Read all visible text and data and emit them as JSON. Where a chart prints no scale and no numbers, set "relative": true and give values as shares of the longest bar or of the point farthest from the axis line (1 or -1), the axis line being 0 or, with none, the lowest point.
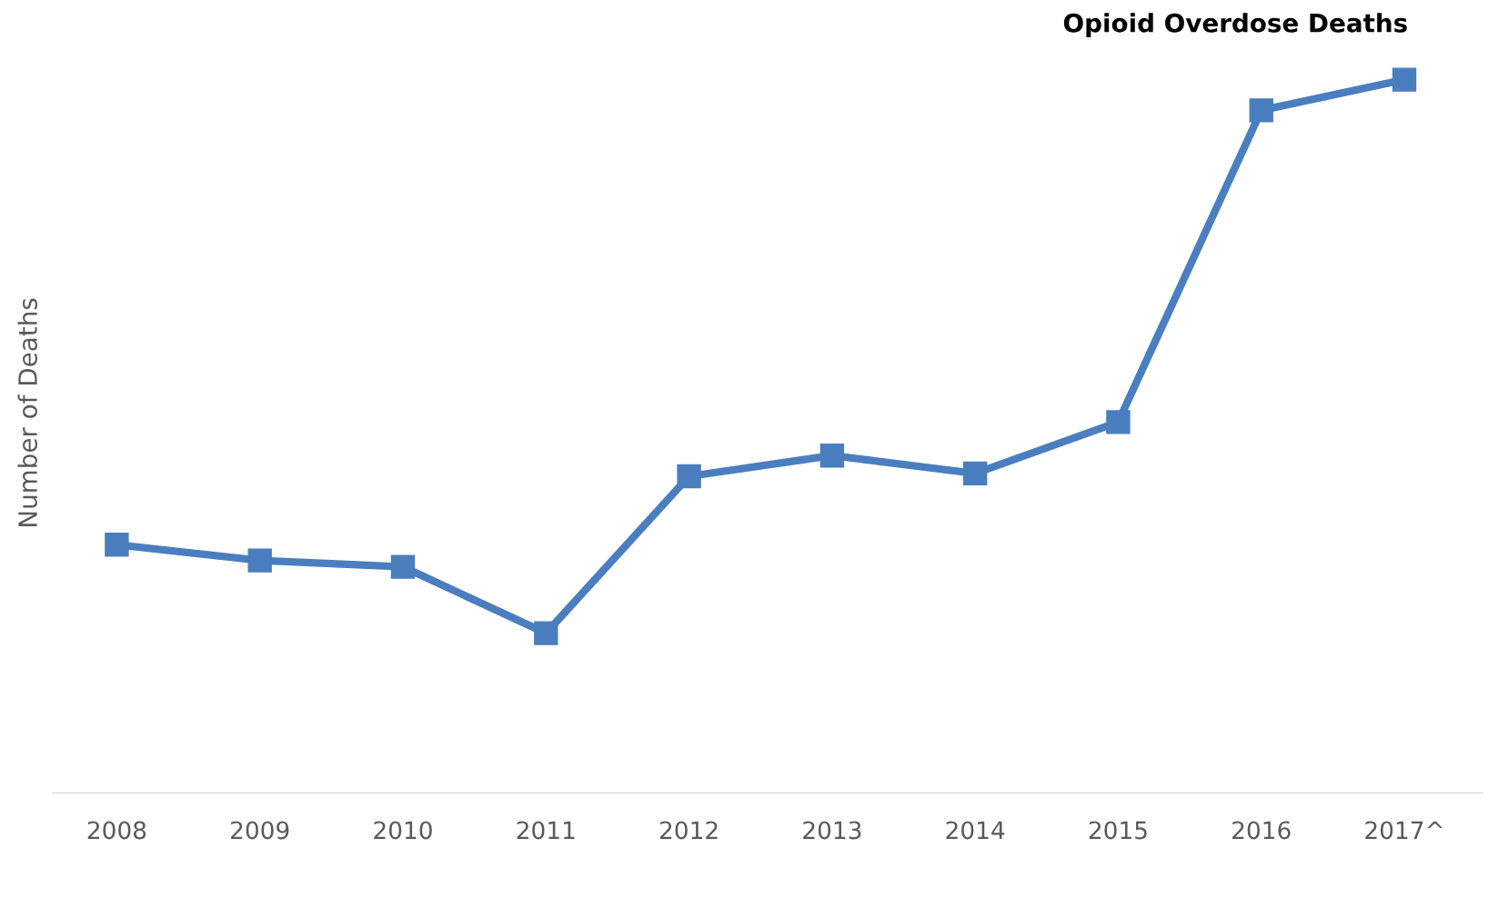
{
  "chart_data": {
    "type": "line",
    "title": "Opioid Overdose Deaths",
    "ylabel": "Number of Deaths",
    "relative": true,
    "categories": [
      "2008",
      "2009",
      "2010",
      "2011",
      "2012",
      "2013",
      "2014",
      "2015",
      "2016",
      "2017^"
    ],
    "series": [
      {
        "color": "#4a7ebf",
        "values": [
          0.348,
          0.326,
          0.317,
          0.224,
          0.444,
          0.473,
          0.448,
          0.52,
          0.957,
          1
        ]
      }
    ],
    "marker": "square",
    "line_style": "solid",
    "grid": false,
    "legend": false
  }
}
